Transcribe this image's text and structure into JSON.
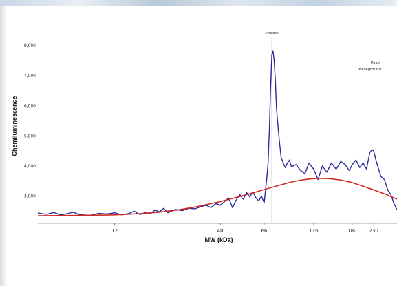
{
  "chart_data": {
    "type": "line",
    "xlabel": "MW (kDa)",
    "ylabel": "Chemiluminescence",
    "x_scale": "log",
    "x_ticks": [
      {
        "label": "12",
        "value": 12
      },
      {
        "label": "40",
        "value": 40
      },
      {
        "label": "66",
        "value": 66
      },
      {
        "label": "116",
        "value": 116
      },
      {
        "label": "180",
        "value": 180
      },
      {
        "label": "230",
        "value": 230
      }
    ],
    "xlim": [
      5,
      300
    ],
    "y_ticks": [
      {
        "label": "3,000",
        "value": 3000
      },
      {
        "label": "4,000",
        "value": 4000
      },
      {
        "label": "5,000",
        "value": 5000
      },
      {
        "label": "6,000",
        "value": 6000
      },
      {
        "label": "7,000",
        "value": 7000
      },
      {
        "label": "8,000",
        "value": 8000
      }
    ],
    "ylim": [
      2100,
      8600
    ],
    "annotations": {
      "peak_label": "Protein",
      "peak_x": 72,
      "corner_label_1": "Peak",
      "corner_label_2": "Background"
    },
    "series": [
      {
        "color": "#2a2a9a",
        "x": [
          5,
          5.5,
          6,
          6.5,
          7,
          7.5,
          8,
          9,
          10,
          11,
          12,
          13,
          14,
          15,
          16,
          17,
          18,
          19,
          20,
          21,
          22,
          24,
          26,
          28,
          30,
          32,
          34,
          36,
          38,
          40,
          42,
          44,
          46,
          48,
          50,
          52,
          54,
          56,
          58,
          60,
          62,
          64,
          66,
          67,
          68,
          69,
          70,
          71,
          72,
          73,
          74,
          75,
          76,
          78,
          80,
          82,
          84,
          86,
          88,
          90,
          95,
          100,
          105,
          110,
          116,
          122,
          128,
          135,
          142,
          150,
          158,
          166,
          174,
          180,
          188,
          196,
          204,
          212,
          220,
          226,
          230,
          236,
          242,
          250,
          260,
          270,
          280,
          290,
          300
        ],
        "y": [
          2440,
          2400,
          2460,
          2380,
          2420,
          2470,
          2390,
          2360,
          2430,
          2410,
          2450,
          2380,
          2420,
          2500,
          2390,
          2460,
          2420,
          2540,
          2480,
          2600,
          2450,
          2560,
          2520,
          2600,
          2580,
          2650,
          2700,
          2620,
          2760,
          2700,
          2820,
          2940,
          2620,
          2880,
          3050,
          2900,
          3120,
          2980,
          3150,
          2950,
          2850,
          3000,
          2780,
          3200,
          3600,
          4100,
          5200,
          6600,
          7700,
          7820,
          7500,
          6800,
          5900,
          5000,
          4300,
          4100,
          3950,
          4100,
          4200,
          3980,
          4050,
          3850,
          3750,
          4100,
          3900,
          3550,
          4000,
          3800,
          4100,
          3900,
          4150,
          4050,
          3850,
          4050,
          4200,
          3950,
          4100,
          3900,
          4450,
          4550,
          4500,
          4200,
          3950,
          3650,
          3550,
          3200,
          3050,
          2750,
          2550
        ]
      },
      {
        "color": "#d0281e",
        "x": [
          5,
          8,
          12,
          16,
          20,
          25,
          30,
          40,
          50,
          60,
          70,
          80,
          90,
          100,
          110,
          120,
          130,
          140,
          160,
          180,
          200,
          230,
          260,
          300
        ],
        "y": [
          2350,
          2360,
          2380,
          2420,
          2470,
          2550,
          2640,
          2820,
          2990,
          3140,
          3270,
          3380,
          3470,
          3530,
          3570,
          3590,
          3590,
          3580,
          3530,
          3450,
          3350,
          3210,
          3080,
          2900
        ]
      }
    ]
  }
}
